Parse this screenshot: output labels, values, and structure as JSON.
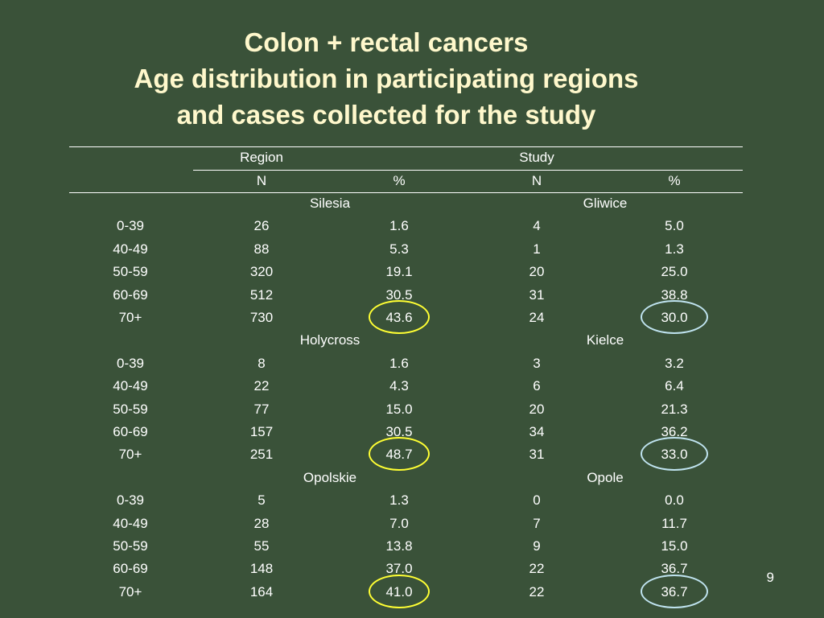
{
  "title": {
    "line1": "Colon + rectal cancers",
    "line2": "Age distribution in participating regions",
    "line3": "and cases collected for the study"
  },
  "table": {
    "group_headers": {
      "region": "Region",
      "study": "Study"
    },
    "sub_headers": {
      "region_n": "N",
      "region_pct": "%",
      "study_n": "N",
      "study_pct": "%"
    },
    "sections": [
      {
        "region_name": "Silesia",
        "study_name": "Gliwice",
        "rows": [
          {
            "age": "0-39",
            "region_n": "26",
            "region_pct": "1.6",
            "study_n": "4",
            "study_pct": "5.0"
          },
          {
            "age": "40-49",
            "region_n": "88",
            "region_pct": "5.3",
            "study_n": "1",
            "study_pct": "1.3"
          },
          {
            "age": "50-59",
            "region_n": "320",
            "region_pct": "19.1",
            "study_n": "20",
            "study_pct": "25.0"
          },
          {
            "age": "60-69",
            "region_n": "512",
            "region_pct": "30.5",
            "study_n": "31",
            "study_pct": "38.8"
          },
          {
            "age": "70+",
            "region_n": "730",
            "region_pct": "43.6",
            "study_n": "24",
            "study_pct": "30.0"
          }
        ]
      },
      {
        "region_name": "Holycross",
        "study_name": "Kielce",
        "rows": [
          {
            "age": "0-39",
            "region_n": "8",
            "region_pct": "1.6",
            "study_n": "3",
            "study_pct": "3.2"
          },
          {
            "age": "40-49",
            "region_n": "22",
            "region_pct": "4.3",
            "study_n": "6",
            "study_pct": "6.4"
          },
          {
            "age": "50-59",
            "region_n": "77",
            "region_pct": "15.0",
            "study_n": "20",
            "study_pct": "21.3"
          },
          {
            "age": "60-69",
            "region_n": "157",
            "region_pct": "30.5",
            "study_n": "34",
            "study_pct": "36.2"
          },
          {
            "age": "70+",
            "region_n": "251",
            "region_pct": "48.7",
            "study_n": "31",
            "study_pct": "33.0"
          }
        ]
      },
      {
        "region_name": "Opolskie",
        "study_name": "Opole",
        "rows": [
          {
            "age": "0-39",
            "region_n": "5",
            "region_pct": "1.3",
            "study_n": "0",
            "study_pct": "0.0"
          },
          {
            "age": "40-49",
            "region_n": "28",
            "region_pct": "7.0",
            "study_n": "7",
            "study_pct": "11.7"
          },
          {
            "age": "50-59",
            "region_n": "55",
            "region_pct": "13.8",
            "study_n": "9",
            "study_pct": "15.0"
          },
          {
            "age": "60-69",
            "region_n": "148",
            "region_pct": "37.0",
            "study_n": "22",
            "study_pct": "36.7"
          },
          {
            "age": "70+",
            "region_n": "164",
            "region_pct": "41.0",
            "study_n": "22",
            "study_pct": "36.7"
          }
        ]
      }
    ]
  },
  "highlight_colors": {
    "region_circle": "#ffff33",
    "study_circle": "#bfe3ef"
  },
  "page_number": "9"
}
